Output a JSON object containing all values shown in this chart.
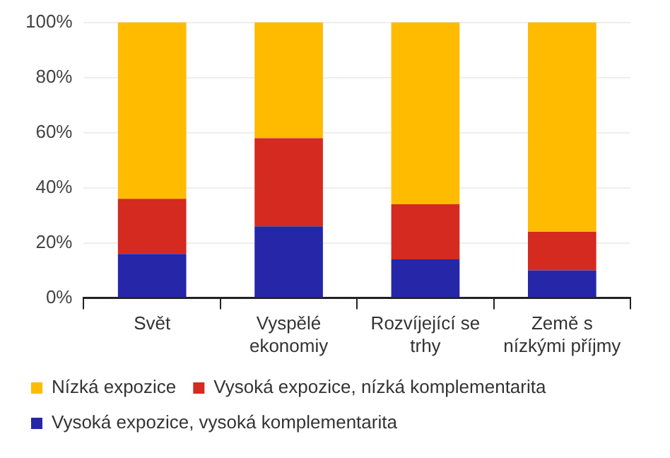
{
  "chart_data": {
    "type": "bar",
    "stacked": true,
    "categories": [
      "Svět",
      "Vyspělé\nekonomiy",
      "Rozvíjející se\ntrhy",
      "Země s\nnízkými příjmy"
    ],
    "series": [
      {
        "name": "Vysoká expozice, vysoká komplementarita",
        "color": "#2526a8",
        "values": [
          16,
          26,
          14,
          10
        ]
      },
      {
        "name": "Vysoká expozice, nízká komplementarita",
        "color": "#d42a1f",
        "values": [
          20,
          32,
          20,
          14
        ]
      },
      {
        "name": "Nízká expozice",
        "color": "#ffbb00",
        "values": [
          64,
          42,
          66,
          76
        ]
      }
    ],
    "ylim": [
      0,
      100
    ],
    "yticks": [
      {
        "value": 0,
        "label": "0%"
      },
      {
        "value": 20,
        "label": "20%"
      },
      {
        "value": 40,
        "label": "40%"
      },
      {
        "value": 60,
        "label": "60%"
      },
      {
        "value": 80,
        "label": "80%"
      },
      {
        "value": 100,
        "label": "100%"
      }
    ],
    "grid": "y",
    "legend": "bottom left"
  }
}
